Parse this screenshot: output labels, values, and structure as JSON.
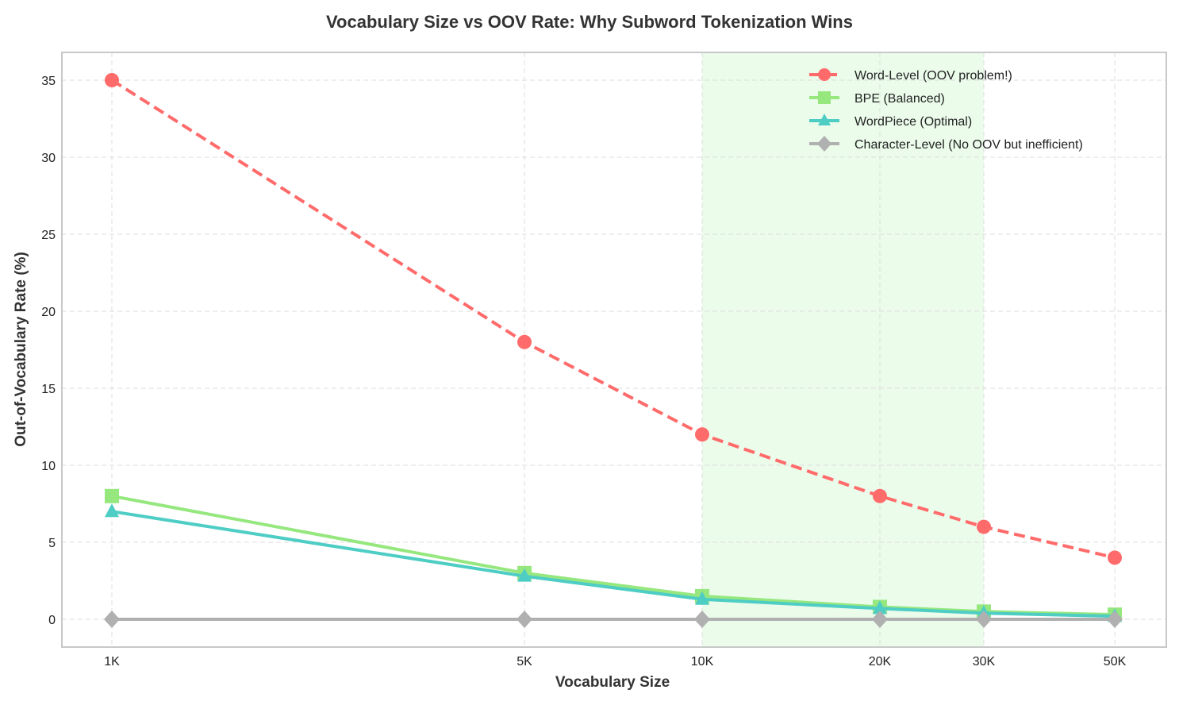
{
  "chart_data": {
    "type": "line",
    "title": "Vocabulary Size vs OOV Rate: Why Subword Tokenization Wins",
    "xlabel": "Vocabulary Size",
    "ylabel": "Out-of-Vocabulary Rate (%)",
    "x_scale": "log",
    "x": [
      1000,
      5000,
      10000,
      20000,
      30000,
      50000
    ],
    "x_tick_labels": [
      "1K",
      "5K",
      "10K",
      "20K",
      "30K",
      "50K"
    ],
    "ylim": [
      -1.75,
      36.75
    ],
    "y_ticks": [
      0,
      5,
      10,
      15,
      20,
      25,
      30,
      35
    ],
    "grid": true,
    "legend_position": "top-right",
    "shaded_region": {
      "x_from": 10000,
      "x_to": 30000,
      "color": "#90ee90"
    },
    "series": [
      {
        "name": "Word-Level (OOV problem!)",
        "values": [
          35,
          18,
          12,
          8,
          6,
          4
        ],
        "color": "#ff6b6b",
        "marker": "circle",
        "line_style": "dashed"
      },
      {
        "name": "BPE (Balanced)",
        "values": [
          8,
          3,
          1.5,
          0.8,
          0.5,
          0.3
        ],
        "color": "#95e77e",
        "marker": "square",
        "line_style": "solid"
      },
      {
        "name": "WordPiece (Optimal)",
        "values": [
          7,
          2.8,
          1.3,
          0.7,
          0.4,
          0.2
        ],
        "color": "#4ecdc4",
        "marker": "triangle",
        "line_style": "solid"
      },
      {
        "name": "Character-Level (No OOV but inefficient)",
        "values": [
          0,
          0,
          0,
          0,
          0,
          0
        ],
        "color": "#b0b0b0",
        "marker": "diamond",
        "line_style": "solid"
      }
    ]
  }
}
